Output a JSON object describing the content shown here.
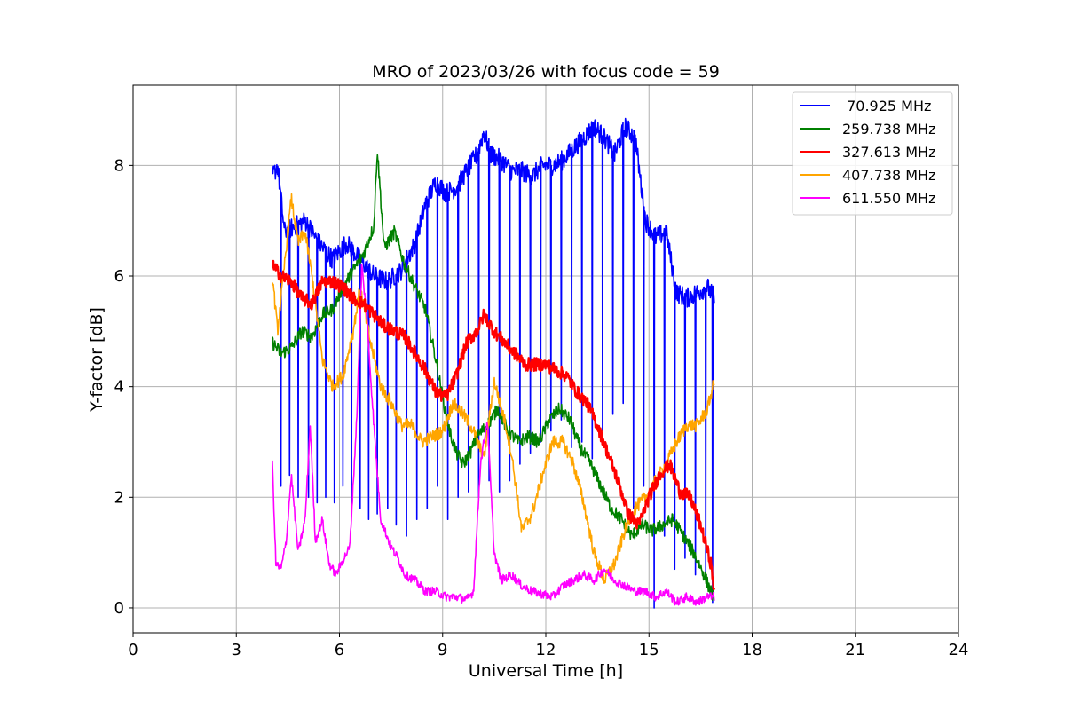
{
  "chart_data": {
    "type": "line",
    "title": "MRO of 2023/03/26 with focus code = 59",
    "xlabel": "Universal Time [h]",
    "ylabel": "Y-factor [dB]",
    "xlim": [
      0,
      24
    ],
    "ylim": [
      -0.45,
      9.45
    ],
    "xticks": [
      0,
      3,
      6,
      9,
      12,
      15,
      18,
      21,
      24
    ],
    "yticks": [
      0,
      2,
      4,
      6,
      8
    ],
    "grid": true,
    "legend_position": "top-right",
    "series": [
      {
        "name": " 70.925 MHz",
        "color": "#0000ff",
        "x": [
          4.05,
          4.2,
          4.4,
          4.7,
          5.0,
          5.4,
          5.8,
          6.2,
          6.6,
          7.0,
          7.4,
          7.8,
          8.2,
          8.5,
          8.8,
          9.1,
          9.4,
          9.7,
          10.0,
          10.2,
          10.4,
          10.7,
          11.0,
          11.3,
          11.6,
          11.9,
          12.2,
          12.5,
          12.8,
          13.1,
          13.4,
          13.7,
          14.0,
          14.3,
          14.6,
          14.9,
          15.2,
          15.5,
          15.8,
          16.1,
          16.4,
          16.7,
          16.9
        ],
        "y": [
          7.8,
          8.0,
          6.8,
          6.9,
          7.0,
          6.6,
          6.3,
          6.6,
          6.3,
          6.0,
          5.9,
          6.1,
          6.6,
          7.3,
          7.7,
          7.5,
          7.6,
          7.9,
          8.2,
          8.6,
          8.2,
          8.1,
          7.9,
          7.9,
          7.8,
          8.0,
          8.0,
          8.1,
          8.3,
          8.5,
          8.7,
          8.5,
          8.2,
          8.7,
          8.5,
          7.0,
          6.7,
          6.8,
          5.7,
          5.6,
          5.7,
          5.8,
          5.6
        ],
        "dips": [
          4.3,
          4.55,
          4.8,
          5.1,
          5.35,
          5.6,
          5.85,
          6.1,
          6.35,
          6.6,
          6.85,
          7.1,
          7.4,
          7.65,
          7.95,
          8.25,
          8.55,
          8.85,
          9.15,
          9.45,
          9.75,
          10.05,
          10.35,
          10.65,
          10.95,
          11.25,
          11.55,
          11.85,
          12.15,
          12.45,
          12.75,
          13.05,
          13.35,
          13.65,
          13.95,
          14.25,
          14.55,
          14.85,
          15.15,
          15.45,
          15.75,
          16.05,
          16.35,
          16.65,
          16.85
        ],
        "dip_values": [
          2.2,
          2.4,
          2.0,
          2.0,
          1.9,
          2.0,
          1.9,
          2.2,
          1.8,
          1.8,
          1.6,
          1.7,
          1.8,
          1.5,
          1.3,
          1.6,
          1.8,
          2.2,
          1.6,
          2.0,
          2.1,
          2.0,
          2.3,
          2.1,
          2.3,
          2.6,
          2.8,
          3.0,
          3.2,
          3.4,
          2.9,
          3.0,
          2.7,
          3.2,
          3.5,
          3.7,
          1.8,
          2.2,
          0.0,
          1.3,
          0.7,
          0.9,
          0.6,
          0.5,
          0.1
        ]
      },
      {
        "name": "259.738 MHz",
        "color": "#008000",
        "x": [
          4.05,
          4.3,
          4.6,
          4.9,
          5.2,
          5.5,
          5.8,
          6.1,
          6.4,
          6.7,
          7.0,
          7.1,
          7.3,
          7.6,
          7.9,
          8.2,
          8.5,
          8.8,
          9.0,
          9.2,
          9.4,
          9.6,
          9.8,
          10.0,
          10.3,
          10.6,
          10.9,
          11.2,
          11.5,
          11.8,
          12.1,
          12.4,
          12.7,
          13.0,
          13.3,
          13.6,
          13.9,
          14.2,
          14.5,
          14.8,
          15.1,
          15.4,
          15.7,
          16.0,
          16.3,
          16.6,
          16.9
        ],
        "y": [
          4.8,
          4.6,
          4.7,
          5.0,
          4.9,
          5.3,
          5.4,
          5.8,
          6.1,
          6.4,
          6.9,
          8.3,
          6.5,
          6.8,
          6.2,
          5.8,
          5.4,
          4.5,
          3.8,
          3.2,
          2.8,
          2.6,
          2.8,
          3.1,
          3.3,
          3.6,
          3.2,
          3.0,
          3.1,
          3.0,
          3.4,
          3.6,
          3.4,
          2.9,
          2.6,
          2.2,
          1.8,
          1.6,
          1.3,
          1.5,
          1.4,
          1.5,
          1.6,
          1.3,
          1.0,
          0.6,
          0.15
        ]
      },
      {
        "name": "327.613 MHz",
        "color": "#ff0000",
        "x": [
          4.05,
          4.3,
          4.6,
          4.9,
          5.2,
          5.5,
          5.8,
          6.1,
          6.4,
          6.7,
          7.0,
          7.3,
          7.6,
          7.9,
          8.2,
          8.5,
          8.8,
          9.1,
          9.4,
          9.7,
          10.0,
          10.2,
          10.5,
          10.8,
          11.1,
          11.4,
          11.7,
          12.0,
          12.3,
          12.6,
          12.9,
          13.2,
          13.5,
          13.8,
          14.1,
          14.4,
          14.7,
          15.0,
          15.3,
          15.6,
          15.9,
          16.2,
          16.5,
          16.8,
          16.9
        ],
        "y": [
          6.2,
          6.0,
          5.9,
          5.6,
          5.5,
          5.9,
          5.9,
          5.8,
          5.6,
          5.5,
          5.3,
          5.1,
          5.0,
          4.9,
          4.6,
          4.3,
          3.9,
          3.8,
          4.2,
          4.8,
          5.0,
          5.3,
          5.0,
          4.8,
          4.6,
          4.4,
          4.4,
          4.4,
          4.3,
          4.2,
          3.9,
          3.7,
          3.3,
          2.8,
          2.3,
          1.7,
          1.5,
          2.0,
          2.4,
          2.6,
          2.1,
          2.0,
          1.5,
          0.8,
          0.3
        ]
      },
      {
        "name": "407.738 MHz",
        "color": "#ffa500",
        "x": [
          4.05,
          4.2,
          4.4,
          4.6,
          4.8,
          5.0,
          5.2,
          5.5,
          5.8,
          6.1,
          6.4,
          6.6,
          6.9,
          7.2,
          7.5,
          7.8,
          8.1,
          8.4,
          8.7,
          9.0,
          9.3,
          9.6,
          9.9,
          10.2,
          10.5,
          10.8,
          11.0,
          11.3,
          11.6,
          11.9,
          12.2,
          12.5,
          12.8,
          13.1,
          13.4,
          13.7,
          14.0,
          14.3,
          14.6,
          14.9,
          15.2,
          15.5,
          15.8,
          16.1,
          16.4,
          16.7,
          16.9
        ],
        "y": [
          6.0,
          5.0,
          6.2,
          7.4,
          6.6,
          6.8,
          6.0,
          4.5,
          4.0,
          4.2,
          5.0,
          5.8,
          4.8,
          4.0,
          3.7,
          3.3,
          3.3,
          3.0,
          3.1,
          3.2,
          3.7,
          3.5,
          3.2,
          2.7,
          4.1,
          3.4,
          2.8,
          1.4,
          1.7,
          2.4,
          3.0,
          3.0,
          2.6,
          1.9,
          1.0,
          0.5,
          0.8,
          1.4,
          1.8,
          2.0,
          2.3,
          2.6,
          3.0,
          3.3,
          3.3,
          3.6,
          4.1
        ]
      },
      {
        "name": "611.550 MHz",
        "color": "#ff00ff",
        "x": [
          4.05,
          4.15,
          4.3,
          4.45,
          4.6,
          4.8,
          5.0,
          5.15,
          5.3,
          5.5,
          5.7,
          5.9,
          6.05,
          6.3,
          6.5,
          6.65,
          6.8,
          7.0,
          7.2,
          7.5,
          7.7,
          7.9,
          8.2,
          8.5,
          8.8,
          9.1,
          9.4,
          9.7,
          9.9,
          10.1,
          10.3,
          10.5,
          10.7,
          11.0,
          11.3,
          11.6,
          11.9,
          12.2,
          12.5,
          12.8,
          13.1,
          13.4,
          13.7,
          14.0,
          14.3,
          14.6,
          14.9,
          15.2,
          15.5,
          15.8,
          16.1,
          16.4,
          16.7,
          16.9
        ],
        "y": [
          2.6,
          0.8,
          0.7,
          1.2,
          2.4,
          1.0,
          1.6,
          3.3,
          1.2,
          1.6,
          0.8,
          0.6,
          0.8,
          1.1,
          3.4,
          6.2,
          5.2,
          3.3,
          1.6,
          1.1,
          0.9,
          0.6,
          0.5,
          0.3,
          0.3,
          0.2,
          0.2,
          0.15,
          0.3,
          2.6,
          3.4,
          1.0,
          0.5,
          0.6,
          0.4,
          0.3,
          0.25,
          0.2,
          0.4,
          0.5,
          0.6,
          0.5,
          0.7,
          0.5,
          0.4,
          0.3,
          0.3,
          0.2,
          0.3,
          0.1,
          0.2,
          0.1,
          0.2,
          0.2
        ]
      }
    ]
  }
}
